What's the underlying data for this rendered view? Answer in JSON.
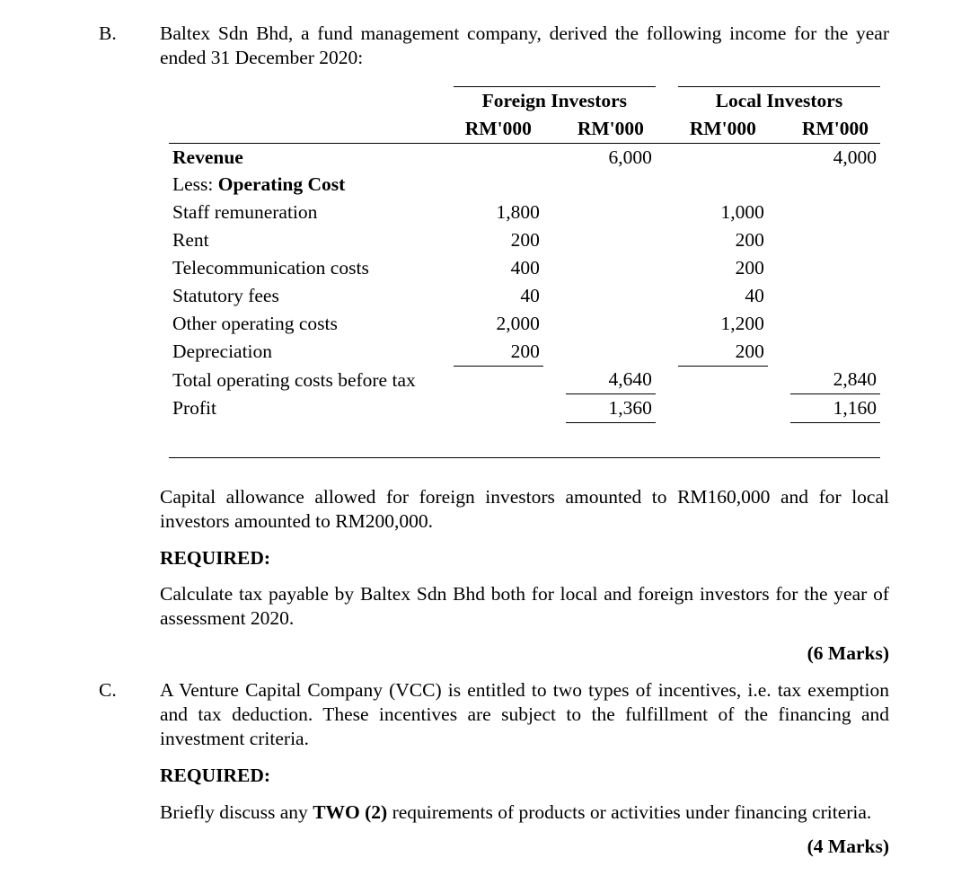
{
  "sectionB": {
    "label": "B.",
    "intro": "Baltex Sdn Bhd, a fund management company, derived the following income for the year ended 31 December 2020:",
    "table": {
      "group_headers": [
        "Foreign Investors",
        "Local Investors"
      ],
      "unit_headers": [
        "RM'000",
        "RM'000",
        "RM'000",
        "RM'000"
      ],
      "rows": [
        {
          "label": "Revenue",
          "bold": true,
          "f1": "",
          "f2": "6,000",
          "l1": "",
          "l2": "4,000"
        },
        {
          "label": "Less: Operating Cost",
          "boldPart": "Operating Cost",
          "prefix": "Less: ",
          "f1": "",
          "f2": "",
          "l1": "",
          "l2": ""
        },
        {
          "label": "Staff remuneration",
          "f1": "1,800",
          "f2": "",
          "l1": "1,000",
          "l2": ""
        },
        {
          "label": "Rent",
          "f1": "200",
          "f2": "",
          "l1": "200",
          "l2": ""
        },
        {
          "label": "Telecommunication costs",
          "f1": "400",
          "f2": "",
          "l1": "200",
          "l2": ""
        },
        {
          "label": "Statutory fees",
          "f1": "40",
          "f2": "",
          "l1": "40",
          "l2": ""
        },
        {
          "label": "Other operating costs",
          "f1": "2,000",
          "f2": "",
          "l1": "1,200",
          "l2": ""
        },
        {
          "label": "Depreciation",
          "f1": "200",
          "f2": "",
          "l1": "200",
          "l2": "",
          "ul_f1": true,
          "ul_l1": true
        },
        {
          "label": "Total operating costs before tax",
          "f1": "",
          "f2": "4,640",
          "l1": "",
          "l2": "2,840",
          "ul_f2": true,
          "ul_l2": true
        },
        {
          "label": "Profit",
          "f1": "",
          "f2": "1,360",
          "l1": "",
          "l2": "1,160",
          "ul_f2": true,
          "ul_l2": true,
          "ul_top_f2": true,
          "ul_top_l2": true
        }
      ]
    },
    "note": "Capital allowance allowed for foreign investors amounted to RM160,000 and for local investors amounted to RM200,000.",
    "required_label": "REQUIRED:",
    "task": "Calculate tax payable by Baltex Sdn Bhd both for local and foreign investors for the year of assessment 2020.",
    "marks": "(6 Marks)"
  },
  "sectionC": {
    "label": "C.",
    "intro": "A Venture Capital Company (VCC) is entitled to two types of incentives, i.e. tax exemption and tax deduction. These incentives are subject to the fulfillment of the financing and investment criteria.",
    "required_label": "REQUIRED:",
    "task_prefix": "Briefly discuss any ",
    "task_bold": "TWO (2)",
    "task_suffix": " requirements of products or activities under financing criteria.",
    "marks": "(4 Marks)"
  }
}
